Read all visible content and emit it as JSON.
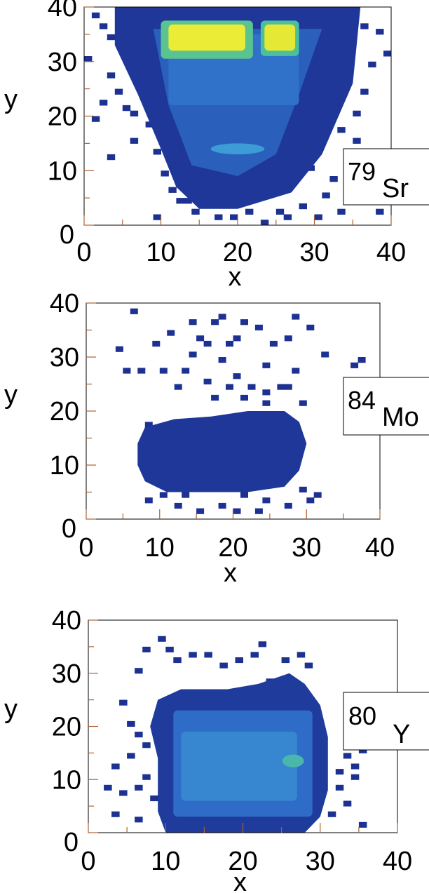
{
  "chart_data": [
    {
      "type": "heatmap",
      "panel": "79Sr",
      "isotope": {
        "mass": "79",
        "symbol": "Sr"
      },
      "xlabel": "x",
      "ylabel": "y",
      "xlim": [
        0,
        40
      ],
      "ylim": [
        0,
        40
      ],
      "xticks": [
        "0",
        "10",
        "20",
        "30",
        "40"
      ],
      "yticks": [
        "0",
        "10",
        "20",
        "30",
        "40"
      ],
      "grid": false,
      "colorscale": [
        "#1a2a8c",
        "#2e6cc8",
        "#3fa1d8",
        "#4cc09a",
        "#d8e030",
        "#f8f43a"
      ],
      "regions": [
        {
          "shape": "poly",
          "points": [
            [
              4,
              40
            ],
            [
              36,
              40
            ],
            [
              35,
              26
            ],
            [
              31,
              13
            ],
            [
              27,
              6
            ],
            [
              20,
              3
            ],
            [
              15,
              3
            ],
            [
              12,
              7
            ],
            [
              10,
              14
            ],
            [
              7,
              24
            ],
            [
              4,
              33
            ]
          ],
          "level": 0.04
        },
        {
          "shape": "poly",
          "points": [
            [
              9,
              36
            ],
            [
              31,
              36
            ],
            [
              28,
              24
            ],
            [
              25,
              13
            ],
            [
              20,
              9
            ],
            [
              14,
              11
            ],
            [
              11,
              22
            ]
          ],
          "level": 0.16
        },
        {
          "shape": "rect",
          "x0": 11,
          "x1": 28,
          "y0": 22,
          "y1": 35,
          "level": 0.22
        },
        {
          "shape": "ellipse",
          "cx": 20,
          "cy": 14,
          "rx": 3.5,
          "ry": 1.0,
          "level": 0.38
        },
        {
          "shape": "rect",
          "x0": 10,
          "x1": 22,
          "y0": 30.5,
          "y1": 37.5,
          "level": 0.62
        },
        {
          "shape": "rect",
          "x0": 23,
          "x1": 28,
          "y0": 31,
          "y1": 37.5,
          "level": 0.6
        },
        {
          "shape": "rect",
          "x0": 11,
          "x1": 21,
          "y0": 32,
          "y1": 36.8,
          "level": 0.92
        },
        {
          "shape": "rect",
          "x0": 23.5,
          "x1": 27.5,
          "y0": 32,
          "y1": 36.8,
          "level": 0.88
        }
      ],
      "scatter_cells": [
        [
          0,
          30
        ],
        [
          1,
          38
        ],
        [
          2,
          36
        ],
        [
          3,
          34
        ],
        [
          3,
          27
        ],
        [
          4,
          24
        ],
        [
          5,
          21
        ],
        [
          6,
          20
        ],
        [
          8,
          18
        ],
        [
          6,
          15
        ],
        [
          8,
          22
        ],
        [
          2,
          22
        ],
        [
          5,
          32
        ],
        [
          6,
          37
        ],
        [
          9,
          13
        ],
        [
          10,
          9
        ],
        [
          11,
          6
        ],
        [
          12,
          4
        ],
        [
          14,
          2
        ],
        [
          17,
          1
        ],
        [
          19,
          1
        ],
        [
          21,
          2
        ],
        [
          23,
          0
        ],
        [
          25,
          2
        ],
        [
          28,
          3
        ],
        [
          31,
          5
        ],
        [
          32,
          8
        ],
        [
          34,
          12
        ],
        [
          33,
          17
        ],
        [
          35,
          20
        ],
        [
          36,
          24
        ],
        [
          37,
          29
        ],
        [
          33,
          33
        ],
        [
          36,
          36
        ],
        [
          38,
          35
        ],
        [
          39,
          31
        ],
        [
          37,
          10
        ],
        [
          38,
          2
        ],
        [
          35,
          4
        ],
        [
          33,
          2
        ],
        [
          30,
          1
        ],
        [
          26,
          1
        ],
        [
          15,
          5
        ],
        [
          24,
          7
        ],
        [
          29,
          10
        ],
        [
          13,
          4
        ],
        [
          9,
          1
        ],
        [
          3,
          12
        ],
        [
          1,
          19
        ],
        [
          30,
          16
        ],
        [
          35,
          15
        ],
        [
          31,
          22
        ]
      ]
    },
    {
      "type": "heatmap",
      "panel": "84Mo",
      "isotope": {
        "mass": "84",
        "symbol": "Mo"
      },
      "xlabel": "x",
      "ylabel": "y",
      "xlim": [
        0,
        40
      ],
      "ylim": [
        0,
        40
      ],
      "xticks": [
        "0",
        "10",
        "20",
        "30",
        "40"
      ],
      "yticks": [
        "0",
        "10",
        "20",
        "30",
        "40"
      ],
      "grid": false,
      "colorscale": [
        "#1a2a8c",
        "#2e6cc8",
        "#3fa1d8",
        "#4cc09a",
        "#d8e030",
        "#f8f43a"
      ],
      "regions": [
        {
          "shape": "poly",
          "points": [
            [
              8,
              17
            ],
            [
              12,
              18.5
            ],
            [
              17,
              19
            ],
            [
              22,
              20
            ],
            [
              27,
              20
            ],
            [
              29,
              18
            ],
            [
              30,
              14
            ],
            [
              29,
              9
            ],
            [
              27,
              6
            ],
            [
              22,
              5
            ],
            [
              16,
              5
            ],
            [
              11,
              5
            ],
            [
              8,
              7
            ],
            [
              7,
              10
            ],
            [
              7,
              14
            ]
          ],
          "level": 0.04
        }
      ],
      "scatter_cells": [
        [
          1,
          40
        ],
        [
          6,
          38
        ],
        [
          9,
          32
        ],
        [
          10,
          27
        ],
        [
          12,
          24
        ],
        [
          14,
          30
        ],
        [
          15,
          33
        ],
        [
          17,
          36
        ],
        [
          19,
          32
        ],
        [
          21,
          36
        ],
        [
          23,
          35
        ],
        [
          25,
          32
        ],
        [
          26,
          40
        ],
        [
          28,
          37
        ],
        [
          30,
          35
        ],
        [
          32,
          30
        ],
        [
          36,
          28
        ],
        [
          37,
          29
        ],
        [
          28,
          27
        ],
        [
          26,
          24
        ],
        [
          24,
          23
        ],
        [
          22,
          24
        ],
        [
          20,
          26
        ],
        [
          18,
          29
        ],
        [
          16,
          32
        ],
        [
          13,
          27
        ],
        [
          11,
          34
        ],
        [
          17,
          22
        ],
        [
          21,
          22
        ],
        [
          24,
          21
        ],
        [
          27,
          24
        ],
        [
          29,
          21
        ],
        [
          22,
          40
        ],
        [
          18,
          37
        ],
        [
          7,
          27
        ],
        [
          4,
          31
        ],
        [
          5,
          27
        ],
        [
          14,
          36
        ],
        [
          20,
          33
        ],
        [
          27,
          33
        ],
        [
          24,
          28
        ],
        [
          16,
          25
        ],
        [
          19,
          24
        ],
        [
          29,
          5
        ],
        [
          30,
          3
        ],
        [
          27,
          2
        ],
        [
          24,
          3
        ],
        [
          21,
          4
        ],
        [
          18,
          2
        ],
        [
          15,
          1
        ],
        [
          12,
          2
        ],
        [
          10,
          4
        ],
        [
          8,
          3
        ],
        [
          13,
          4
        ],
        [
          31,
          4
        ],
        [
          23,
          1
        ],
        [
          20,
          1
        ],
        [
          8,
          17
        ]
      ]
    },
    {
      "type": "heatmap",
      "panel": "80Y",
      "isotope": {
        "mass": "80",
        "symbol": "Y"
      },
      "xlabel": "x",
      "ylabel": "y",
      "xlim": [
        0,
        40
      ],
      "ylim": [
        0,
        40
      ],
      "xticks": [
        "0",
        "10",
        "20",
        "30",
        "40"
      ],
      "yticks": [
        "0",
        "10",
        "20",
        "30",
        "40"
      ],
      "grid": false,
      "colorscale": [
        "#1a2a8c",
        "#2e6cc8",
        "#3fa1d8",
        "#4cc09a",
        "#d8e030",
        "#f8f43a"
      ],
      "regions": [
        {
          "shape": "poly",
          "points": [
            [
              9,
              25
            ],
            [
              12,
              27
            ],
            [
              18,
              27
            ],
            [
              22,
              28
            ],
            [
              26,
              30
            ],
            [
              28,
              28
            ],
            [
              30,
              24
            ],
            [
              31,
              18
            ],
            [
              31,
              8
            ],
            [
              30,
              3
            ],
            [
              28,
              0
            ],
            [
              10,
              0
            ],
            [
              9,
              4
            ],
            [
              9,
              14
            ],
            [
              8,
              20
            ]
          ],
          "level": 0.05
        },
        {
          "shape": "rect",
          "x0": 11,
          "x1": 29,
          "y0": 3,
          "y1": 23,
          "level": 0.2
        },
        {
          "shape": "rect",
          "x0": 12,
          "x1": 27,
          "y0": 6,
          "y1": 19,
          "level": 0.3
        },
        {
          "shape": "ellipse",
          "cx": 26.5,
          "cy": 13.5,
          "rx": 1.4,
          "ry": 1.2,
          "level": 0.55
        }
      ],
      "scatter_cells": [
        [
          7,
          34
        ],
        [
          9,
          36
        ],
        [
          10,
          34
        ],
        [
          11,
          32
        ],
        [
          13,
          33
        ],
        [
          15,
          33
        ],
        [
          17,
          31
        ],
        [
          19,
          32
        ],
        [
          21,
          33
        ],
        [
          22,
          35
        ],
        [
          25,
          32
        ],
        [
          27,
          33
        ],
        [
          23,
          28
        ],
        [
          28,
          31
        ],
        [
          6,
          30
        ],
        [
          4,
          24
        ],
        [
          5,
          20
        ],
        [
          6,
          18
        ],
        [
          7,
          16
        ],
        [
          5,
          14
        ],
        [
          3,
          12
        ],
        [
          7,
          10
        ],
        [
          6,
          8
        ],
        [
          4,
          7
        ],
        [
          2,
          8
        ],
        [
          8,
          6
        ],
        [
          33,
          14
        ],
        [
          34,
          12
        ],
        [
          32,
          11
        ],
        [
          35,
          15
        ],
        [
          34,
          10
        ],
        [
          32,
          8
        ],
        [
          33,
          5
        ],
        [
          31,
          3
        ],
        [
          35,
          1
        ],
        [
          3,
          3
        ],
        [
          6,
          2
        ]
      ]
    }
  ]
}
